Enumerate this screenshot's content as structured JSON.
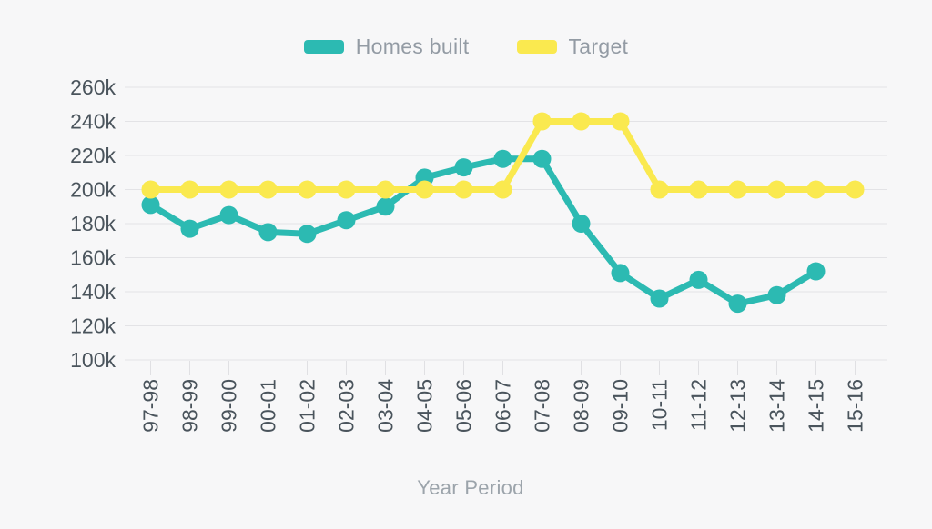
{
  "chart_data": {
    "type": "line",
    "title": "",
    "xlabel": "Year Period",
    "ylabel": "",
    "unit": "thousands of homes (k)",
    "grid": true,
    "legend_position": "top-center",
    "categories": [
      "97-98",
      "98-99",
      "99-00",
      "00-01",
      "01-02",
      "02-03",
      "03-04",
      "04-05",
      "05-06",
      "06-07",
      "07-08",
      "08-09",
      "09-10",
      "10-11",
      "11-12",
      "12-13",
      "13-14",
      "14-15",
      "15-16"
    ],
    "ylim": [
      100,
      260
    ],
    "y_ticks": [
      260,
      240,
      220,
      200,
      180,
      160,
      140,
      120,
      100
    ],
    "y_tick_suffix": "k",
    "series": [
      {
        "name": "Homes built",
        "color": "#2cbab2",
        "values": [
          191,
          177,
          185,
          175,
          174,
          182,
          190,
          207,
          213,
          218,
          218,
          180,
          151,
          136,
          147,
          133,
          138,
          152,
          null
        ]
      },
      {
        "name": "Target",
        "color": "#fae94f",
        "values": [
          200,
          200,
          200,
          200,
          200,
          200,
          200,
          200,
          200,
          200,
          240,
          240,
          240,
          200,
          200,
          200,
          200,
          200,
          200
        ]
      }
    ]
  },
  "colors": {
    "background": "#f7f7f8",
    "gridline": "#e3e3e6",
    "x_tick": "#e0e0e3",
    "tick_label_text": "#4a545c",
    "muted_text": "#9ca4ab",
    "legend_text": "#939ba4"
  }
}
